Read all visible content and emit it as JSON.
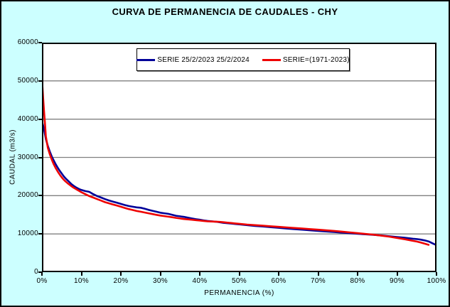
{
  "window": {
    "title": "CURVA DE PERMANENCIA DE CAUDALES - CHY"
  },
  "chart_data": {
    "type": "line",
    "title": "CURVA DE PERMANENCIA DE CAUDALES - CHY",
    "xlabel": "PERMANENCIA (%)",
    "ylabel": "CAUDAL (m3/s)",
    "xlim": [
      0,
      100
    ],
    "ylim": [
      0,
      60000
    ],
    "xticks": [
      0,
      10,
      20,
      30,
      40,
      50,
      60,
      70,
      80,
      90,
      100
    ],
    "xtick_labels": [
      "0%",
      "10%",
      "20%",
      "30%",
      "40%",
      "50%",
      "60%",
      "70%",
      "80%",
      "90%",
      "100%"
    ],
    "yticks": [
      0,
      10000,
      20000,
      30000,
      40000,
      50000,
      60000
    ],
    "ytick_labels": [
      "0",
      "10000",
      "20000",
      "30000",
      "40000",
      "50000",
      "60000"
    ],
    "grid": "horizontal-only",
    "gridline_color": "#808080",
    "background": "#CCFFFF",
    "plot_background": "#FFFFFF",
    "axis_color": "#000000",
    "legend_position": "top-center",
    "series": [
      {
        "name": "SERIE 25/2/2023 25/2/2024",
        "color": "#000099",
        "points": [
          [
            0,
            39500
          ],
          [
            0.5,
            37500
          ],
          [
            1,
            34800
          ],
          [
            1.5,
            33000
          ],
          [
            2,
            31500
          ],
          [
            2.5,
            30200
          ],
          [
            3,
            29200
          ],
          [
            3.5,
            28200
          ],
          [
            4,
            27300
          ],
          [
            4.5,
            26500
          ],
          [
            5,
            25800
          ],
          [
            5.5,
            25100
          ],
          [
            6,
            24500
          ],
          [
            6.5,
            24000
          ],
          [
            7,
            23500
          ],
          [
            7.5,
            23000
          ],
          [
            8,
            22600
          ],
          [
            8.5,
            22250
          ],
          [
            9,
            21950
          ],
          [
            9.5,
            21700
          ],
          [
            10,
            21500
          ],
          [
            11,
            21200
          ],
          [
            11.5,
            21100
          ],
          [
            12,
            21000
          ],
          [
            12.5,
            20700
          ],
          [
            13,
            20400
          ],
          [
            14,
            19900
          ],
          [
            15,
            19500
          ],
          [
            16,
            19100
          ],
          [
            17,
            18750
          ],
          [
            18,
            18450
          ],
          [
            19,
            18150
          ],
          [
            20,
            17850
          ],
          [
            21,
            17550
          ],
          [
            22,
            17300
          ],
          [
            23,
            17100
          ],
          [
            24,
            16950
          ],
          [
            25,
            16850
          ],
          [
            26,
            16600
          ],
          [
            27,
            16300
          ],
          [
            28,
            16050
          ],
          [
            29,
            15800
          ],
          [
            30,
            15550
          ],
          [
            31,
            15400
          ],
          [
            32,
            15250
          ],
          [
            33,
            15000
          ],
          [
            34,
            14750
          ],
          [
            35,
            14600
          ],
          [
            36,
            14450
          ],
          [
            37,
            14250
          ],
          [
            38,
            14050
          ],
          [
            39,
            13850
          ],
          [
            40,
            13700
          ],
          [
            41,
            13550
          ],
          [
            42,
            13400
          ],
          [
            43,
            13300
          ],
          [
            44,
            13200
          ],
          [
            45,
            13050
          ],
          [
            46,
            12900
          ],
          [
            47,
            12800
          ],
          [
            48,
            12700
          ],
          [
            49,
            12600
          ],
          [
            50,
            12500
          ],
          [
            52,
            12300
          ],
          [
            54,
            12100
          ],
          [
            56,
            11950
          ],
          [
            58,
            11750
          ],
          [
            60,
            11600
          ],
          [
            62,
            11400
          ],
          [
            64,
            11250
          ],
          [
            66,
            11100
          ],
          [
            68,
            10950
          ],
          [
            70,
            10800
          ],
          [
            72,
            10650
          ],
          [
            74,
            10500
          ],
          [
            76,
            10350
          ],
          [
            78,
            10200
          ],
          [
            80,
            10050
          ],
          [
            82,
            9900
          ],
          [
            84,
            9750
          ],
          [
            86,
            9600
          ],
          [
            88,
            9400
          ],
          [
            90,
            9200
          ],
          [
            92,
            9000
          ],
          [
            94,
            8750
          ],
          [
            95,
            8650
          ],
          [
            96,
            8500
          ],
          [
            97,
            8300
          ],
          [
            98,
            8050
          ],
          [
            99,
            7550
          ],
          [
            99.5,
            7300
          ],
          [
            100,
            7100
          ]
        ]
      },
      {
        "name": "SERIE=(1971-2023)",
        "color": "#EE0000",
        "points": [
          [
            0,
            50800
          ],
          [
            0.3,
            45500
          ],
          [
            0.5,
            42500
          ],
          [
            0.8,
            38500
          ],
          [
            1,
            35500
          ],
          [
            1.5,
            32500
          ],
          [
            2,
            30800
          ],
          [
            2.5,
            29400
          ],
          [
            3,
            28200
          ],
          [
            3.5,
            27200
          ],
          [
            4,
            26300
          ],
          [
            4.5,
            25500
          ],
          [
            5,
            24800
          ],
          [
            5.5,
            24200
          ],
          [
            6,
            23700
          ],
          [
            6.5,
            23250
          ],
          [
            7,
            22850
          ],
          [
            7.5,
            22450
          ],
          [
            8,
            22100
          ],
          [
            8.5,
            21800
          ],
          [
            9,
            21500
          ],
          [
            9.5,
            21200
          ],
          [
            10,
            20900
          ],
          [
            11,
            20400
          ],
          [
            12,
            19900
          ],
          [
            13,
            19500
          ],
          [
            14,
            19100
          ],
          [
            15,
            18700
          ],
          [
            16,
            18300
          ],
          [
            17,
            18000
          ],
          [
            18,
            17700
          ],
          [
            19,
            17400
          ],
          [
            20,
            17100
          ],
          [
            21,
            16800
          ],
          [
            22,
            16500
          ],
          [
            23,
            16250
          ],
          [
            24,
            16000
          ],
          [
            25,
            15800
          ],
          [
            26,
            15600
          ],
          [
            27,
            15400
          ],
          [
            28,
            15200
          ],
          [
            29,
            15000
          ],
          [
            30,
            14800
          ],
          [
            31,
            14650
          ],
          [
            32,
            14500
          ],
          [
            33,
            14350
          ],
          [
            34,
            14200
          ],
          [
            35,
            14050
          ],
          [
            36,
            13900
          ],
          [
            37,
            13800
          ],
          [
            38,
            13700
          ],
          [
            39,
            13600
          ],
          [
            40,
            13500
          ],
          [
            41,
            13400
          ],
          [
            42,
            13300
          ],
          [
            43,
            13250
          ],
          [
            44,
            13200
          ],
          [
            45,
            13150
          ],
          [
            46,
            13050
          ],
          [
            47,
            12950
          ],
          [
            48,
            12850
          ],
          [
            49,
            12750
          ],
          [
            50,
            12650
          ],
          [
            52,
            12450
          ],
          [
            54,
            12300
          ],
          [
            56,
            12150
          ],
          [
            58,
            12000
          ],
          [
            60,
            11850
          ],
          [
            62,
            11700
          ],
          [
            64,
            11550
          ],
          [
            66,
            11400
          ],
          [
            68,
            11250
          ],
          [
            70,
            11100
          ],
          [
            72,
            10950
          ],
          [
            74,
            10800
          ],
          [
            76,
            10600
          ],
          [
            78,
            10400
          ],
          [
            80,
            10200
          ],
          [
            82,
            9990
          ],
          [
            84,
            9800
          ],
          [
            86,
            9550
          ],
          [
            88,
            9280
          ],
          [
            90,
            8950
          ],
          [
            92,
            8600
          ],
          [
            94,
            8200
          ],
          [
            95,
            8000
          ],
          [
            96,
            7750
          ],
          [
            97,
            7450
          ],
          [
            98,
            7150
          ]
        ]
      }
    ]
  }
}
